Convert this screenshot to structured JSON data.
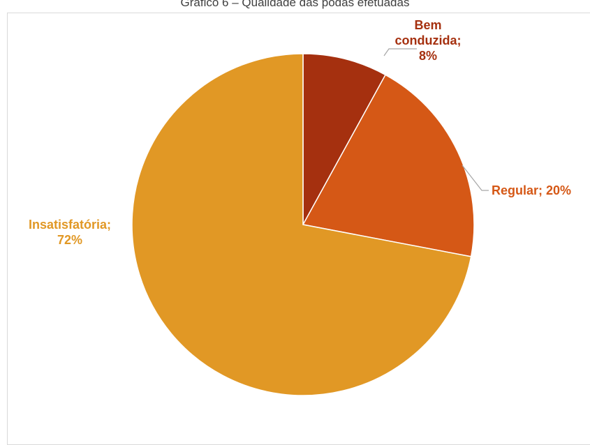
{
  "chart_data": {
    "type": "pie",
    "title": "Gráfico 6 – Qualidade das podas efetuadas",
    "slices": [
      {
        "label_lines": [
          "Bem",
          "conduzida;",
          "8%"
        ],
        "category": "Bem conduzida",
        "value": 8,
        "color": "#a5300f"
      },
      {
        "label_lines": [
          "Regular; 20%"
        ],
        "category": "Regular",
        "value": 20,
        "color": "#d55816"
      },
      {
        "label_lines": [
          "Insatisfatória;",
          "72%"
        ],
        "category": "Insatisfatória",
        "value": 72,
        "color": "#e19825"
      }
    ]
  }
}
